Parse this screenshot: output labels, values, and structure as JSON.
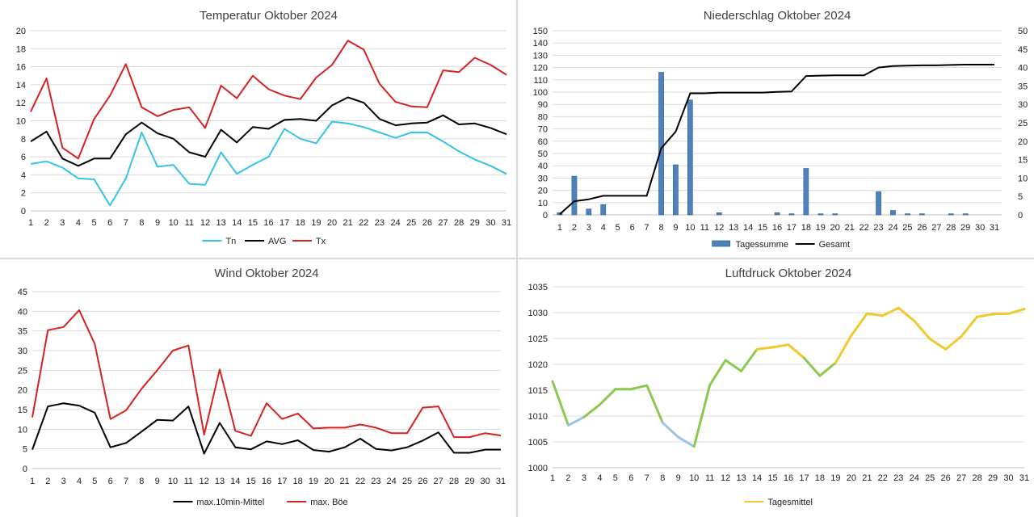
{
  "chart_data": [
    {
      "type": "line",
      "title": "Temperatur Oktober 2024",
      "x": [
        1,
        2,
        3,
        4,
        5,
        6,
        7,
        8,
        9,
        10,
        11,
        12,
        13,
        14,
        15,
        16,
        17,
        18,
        19,
        20,
        21,
        22,
        23,
        24,
        25,
        26,
        27,
        28,
        29,
        30,
        31
      ],
      "ylim": [
        0,
        20
      ],
      "yticks": [
        0,
        2,
        4,
        6,
        8,
        10,
        12,
        14,
        16,
        18,
        20
      ],
      "legend_position": "bottom",
      "series": [
        {
          "name": "Tn",
          "color": "#33c3e8",
          "values": [
            5.2,
            5.5,
            4.8,
            3.6,
            3.5,
            0.6,
            3.6,
            8.7,
            4.9,
            5.1,
            3.0,
            2.9,
            6.5,
            4.1,
            5.1,
            6.0,
            9.1,
            8.0,
            7.5,
            9.9,
            9.7,
            9.3,
            8.7,
            8.1,
            8.7,
            8.7,
            7.7,
            6.6,
            5.7,
            5.0,
            4.1
          ]
        },
        {
          "name": "AVG",
          "color": "#000000",
          "values": [
            7.7,
            8.8,
            5.8,
            5.0,
            5.8,
            5.8,
            8.5,
            9.8,
            8.6,
            8.0,
            6.5,
            6.0,
            9.0,
            7.6,
            9.3,
            9.1,
            10.1,
            10.2,
            10.0,
            11.7,
            12.6,
            12.0,
            10.2,
            9.5,
            9.7,
            9.8,
            10.6,
            9.6,
            9.7,
            9.2,
            8.5
          ]
        },
        {
          "name": "Tx",
          "color": "#d72020",
          "values": [
            11.0,
            14.7,
            7.0,
            5.8,
            10.2,
            12.8,
            16.3,
            11.5,
            10.5,
            11.2,
            11.5,
            9.2,
            13.9,
            12.5,
            15.0,
            13.5,
            12.8,
            12.4,
            14.8,
            16.2,
            18.9,
            17.9,
            14.1,
            12.1,
            11.6,
            11.5,
            15.6,
            15.4,
            17.0,
            16.2,
            15.1
          ]
        }
      ]
    },
    {
      "type": "bar+line",
      "title": "Niederschlag Oktober 2024",
      "x": [
        1,
        2,
        3,
        4,
        5,
        6,
        7,
        8,
        9,
        10,
        11,
        12,
        13,
        14,
        15,
        16,
        17,
        18,
        19,
        20,
        21,
        22,
        23,
        24,
        25,
        26,
        27,
        28,
        29,
        30,
        31
      ],
      "ylim_left": [
        0,
        150
      ],
      "yticks_left": [
        0,
        10,
        20,
        30,
        40,
        50,
        60,
        70,
        80,
        90,
        100,
        110,
        120,
        130,
        140,
        150
      ],
      "ylim_right": [
        0,
        50
      ],
      "yticks_right": [
        0,
        5,
        10,
        15,
        20,
        25,
        30,
        35,
        40,
        45,
        50
      ],
      "legend_position": "bottom",
      "bars": {
        "name": "Tagessumme",
        "axis": "right",
        "color": "#4f81bd",
        "values": [
          0.6,
          10.5,
          1.6,
          2.8,
          0,
          0,
          0,
          38.7,
          13.6,
          31.2,
          0,
          0.6,
          0,
          0,
          0,
          0.6,
          0.3,
          12.6,
          0.3,
          0.3,
          0,
          0,
          6.3,
          1.2,
          0.3,
          0.3,
          0,
          0.3,
          0.3,
          0,
          0
        ]
      },
      "line": {
        "name": "Gesamt",
        "axis": "left",
        "color": "#000000",
        "values": [
          0.6,
          11.1,
          12.7,
          15.5,
          15.5,
          15.5,
          15.5,
          54.2,
          67.8,
          99.0,
          99.0,
          99.6,
          99.6,
          99.6,
          99.6,
          100.2,
          100.5,
          113.1,
          113.4,
          113.7,
          113.7,
          113.7,
          120.0,
          121.2,
          121.5,
          121.8,
          121.8,
          122.1,
          122.4,
          122.4,
          122.4
        ]
      }
    },
    {
      "type": "line",
      "title": "Wind Oktober 2024",
      "x": [
        1,
        2,
        3,
        4,
        5,
        6,
        7,
        8,
        9,
        10,
        11,
        12,
        13,
        14,
        15,
        16,
        17,
        18,
        19,
        20,
        21,
        22,
        23,
        24,
        25,
        26,
        27,
        28,
        29,
        30,
        31
      ],
      "ylim": [
        0,
        45
      ],
      "yticks": [
        0,
        5,
        10,
        15,
        20,
        25,
        30,
        35,
        40,
        45
      ],
      "legend_position": "bottom",
      "series": [
        {
          "name": "max.10min-Mittel",
          "color": "#000000",
          "values": [
            4.8,
            15.8,
            16.6,
            16.0,
            14.2,
            5.4,
            6.5,
            9.4,
            12.4,
            12.2,
            15.8,
            3.8,
            11.6,
            5.4,
            4.9,
            6.9,
            6.2,
            7.2,
            4.7,
            4.3,
            5.4,
            7.6,
            5.0,
            4.6,
            5.4,
            7.1,
            9.2,
            4.0,
            4.0,
            4.8,
            4.8
          ]
        },
        {
          "name": "max. Böe",
          "color": "#d72020",
          "values": [
            13.0,
            35.2,
            36.0,
            40.3,
            31.7,
            12.6,
            14.8,
            20.3,
            25.0,
            30.0,
            31.3,
            8.6,
            25.2,
            9.6,
            8.3,
            16.6,
            12.6,
            14.0,
            10.2,
            10.4,
            10.4,
            11.2,
            10.4,
            9.0,
            9.0,
            15.5,
            15.8,
            8.0,
            8.0,
            9.0,
            8.4
          ]
        }
      ]
    },
    {
      "type": "line",
      "title": "Luftdruck Oktober 2024",
      "x": [
        1,
        2,
        3,
        4,
        5,
        6,
        7,
        8,
        9,
        10,
        11,
        12,
        13,
        14,
        15,
        16,
        17,
        18,
        19,
        20,
        21,
        22,
        23,
        24,
        25,
        26,
        27,
        28,
        29,
        30,
        31
      ],
      "ylim": [
        1000,
        1035
      ],
      "yticks": [
        1000,
        1005,
        1010,
        1015,
        1020,
        1025,
        1030,
        1035
      ],
      "legend_position": "bottom",
      "series": [
        {
          "name": "Tagesmittel",
          "color": "#f0c830",
          "values": [
            1016.7,
            1008.2,
            1009.8,
            1012.2,
            1015.2,
            1015.2,
            1015.9,
            1008.7,
            1005.9,
            1004.1,
            1016.0,
            1020.8,
            1018.7,
            1022.9,
            1023.3,
            1023.8,
            1021.2,
            1017.8,
            1020.3,
            1025.6,
            1029.8,
            1029.4,
            1030.9,
            1028.4,
            1024.9,
            1022.9,
            1025.4,
            1029.2,
            1029.7,
            1029.8,
            1030.7
          ]
        }
      ],
      "segment_colors": {
        "low": "#9dc3e6",
        "mid": "#8cc850",
        "high": "#f0c830",
        "peak": "#f08050"
      }
    }
  ]
}
